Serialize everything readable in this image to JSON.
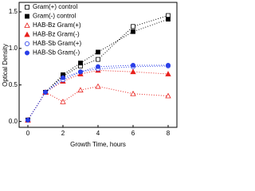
{
  "chart_data": {
    "type": "line",
    "x_label": "Growth Time, hours",
    "y_label": "Optical Density",
    "x": [
      0,
      1,
      2,
      3,
      4,
      6,
      8
    ],
    "series": [
      {
        "name": "Gram(+) control",
        "color": "#000000",
        "marker": "square",
        "filled": false,
        "values": [
          0.02,
          0.4,
          0.62,
          0.76,
          0.85,
          1.3,
          1.45
        ]
      },
      {
        "name": "Gram(-) control",
        "color": "#000000",
        "marker": "square",
        "filled": true,
        "values": [
          0.02,
          0.4,
          0.64,
          0.8,
          0.95,
          1.23,
          1.4
        ]
      },
      {
        "name": "HAB-Bz Gram(+)",
        "color": "#e8201c",
        "marker": "triangle",
        "filled": false,
        "values": [
          0.02,
          0.4,
          0.27,
          0.43,
          0.48,
          0.38,
          0.35
        ]
      },
      {
        "name": "HAB-Bz Gram(-)",
        "color": "#e8201c",
        "marker": "triangle",
        "filled": true,
        "values": [
          0.02,
          0.4,
          0.55,
          0.65,
          0.7,
          0.68,
          0.65
        ]
      },
      {
        "name": "HAB-Sb Gram(+)",
        "color": "#2a3fe8",
        "marker": "circle",
        "filled": false,
        "values": [
          0.02,
          0.4,
          0.57,
          0.68,
          0.72,
          0.75,
          0.76
        ]
      },
      {
        "name": "HAB-Sb Gram(-)",
        "color": "#2a3fe8",
        "marker": "circle",
        "filled": true,
        "values": [
          0.02,
          0.4,
          0.6,
          0.68,
          0.75,
          0.77,
          0.77
        ]
      }
    ],
    "xlim": [
      -0.5,
      8.5
    ],
    "xticks": [
      0,
      2,
      4,
      6,
      8
    ],
    "ylim": [
      -0.08,
      1.63
    ],
    "yticks": [
      {
        "value": 0,
        "label": "0.0"
      },
      0.5,
      {
        "value": 1,
        "label": "1.0"
      },
      1.5
    ],
    "line_style": "dotted",
    "legend": "upper left",
    "grid": false
  }
}
